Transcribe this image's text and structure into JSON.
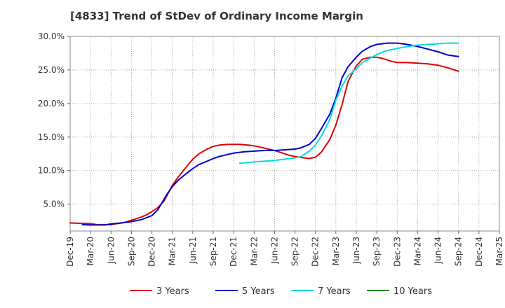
{
  "chart_data": {
    "type": "line",
    "title": "[4833]  Trend of StDev of Ordinary Income Margin",
    "x_labels": [
      "Dec-19",
      "Mar-20",
      "Jun-20",
      "Sep-20",
      "Dec-20",
      "Mar-21",
      "Jun-21",
      "Sep-21",
      "Dec-21",
      "Mar-22",
      "Jun-22",
      "Sep-22",
      "Dec-22",
      "Mar-23",
      "Jun-23",
      "Sep-23",
      "Dec-23",
      "Mar-24",
      "Jun-24",
      "Sep-24",
      "Dec-24",
      "Mar-25"
    ],
    "y_ticks": [
      "5.0%",
      "10.0%",
      "15.0%",
      "20.0%",
      "25.0%",
      "30.0%"
    ],
    "y_tick_values": [
      5,
      10,
      15,
      20,
      25,
      30
    ],
    "ylim": [
      1,
      30
    ],
    "grid": true,
    "legend_position": "bottom",
    "series": [
      {
        "name": "3 Years",
        "color": "#dd0000",
        "points": [
          [
            0,
            2.2
          ],
          [
            1,
            2.1
          ],
          [
            1.3,
            1.95
          ],
          [
            2,
            1.95
          ],
          [
            2.7,
            2.3
          ],
          [
            3,
            2.6
          ],
          [
            3.5,
            3.1
          ],
          [
            3.8,
            3.5
          ],
          [
            4,
            3.9
          ],
          [
            4.3,
            4.5
          ],
          [
            4.6,
            5.5
          ],
          [
            5,
            7.8
          ],
          [
            5.3,
            9.1
          ],
          [
            5.7,
            10.6
          ],
          [
            6,
            11.7
          ],
          [
            6.3,
            12.5
          ],
          [
            6.7,
            13.2
          ],
          [
            7,
            13.6
          ],
          [
            7.3,
            13.8
          ],
          [
            7.7,
            13.9
          ],
          [
            8,
            13.9
          ],
          [
            8.3,
            13.9
          ],
          [
            8.7,
            13.8
          ],
          [
            9,
            13.7
          ],
          [
            9.3,
            13.5
          ],
          [
            9.7,
            13.2
          ],
          [
            10,
            13.0
          ],
          [
            10.3,
            12.7
          ],
          [
            10.7,
            12.3
          ],
          [
            11,
            12.1
          ],
          [
            11.3,
            11.95
          ],
          [
            11.7,
            11.8
          ],
          [
            12,
            12.0
          ],
          [
            12.3,
            12.8
          ],
          [
            12.7,
            14.6
          ],
          [
            13,
            16.8
          ],
          [
            13.3,
            19.8
          ],
          [
            13.6,
            23.3
          ],
          [
            14,
            25.6
          ],
          [
            14.3,
            26.6
          ],
          [
            14.7,
            26.9
          ],
          [
            15,
            26.9
          ],
          [
            15.3,
            26.7
          ],
          [
            15.7,
            26.3
          ],
          [
            16,
            26.1
          ],
          [
            16.5,
            26.1
          ],
          [
            17,
            26.0
          ],
          [
            17.5,
            25.9
          ],
          [
            18,
            25.7
          ],
          [
            18.5,
            25.3
          ],
          [
            19,
            24.8
          ]
        ]
      },
      {
        "name": "5 Years",
        "color": "#0000cc",
        "points": [
          [
            0.6,
            1.95
          ],
          [
            1,
            1.9
          ],
          [
            1.7,
            1.9
          ],
          [
            2,
            2.05
          ],
          [
            2.5,
            2.2
          ],
          [
            3,
            2.4
          ],
          [
            3.5,
            2.7
          ],
          [
            4,
            3.3
          ],
          [
            4.3,
            4.2
          ],
          [
            4.7,
            6.3
          ],
          [
            5,
            7.6
          ],
          [
            5.3,
            8.6
          ],
          [
            5.7,
            9.6
          ],
          [
            6,
            10.3
          ],
          [
            6.3,
            10.9
          ],
          [
            6.7,
            11.4
          ],
          [
            7,
            11.8
          ],
          [
            7.3,
            12.1
          ],
          [
            7.7,
            12.4
          ],
          [
            8,
            12.6
          ],
          [
            8.5,
            12.8
          ],
          [
            9,
            12.9
          ],
          [
            9.5,
            13.0
          ],
          [
            10,
            13.0
          ],
          [
            10.5,
            13.1
          ],
          [
            11,
            13.2
          ],
          [
            11.3,
            13.4
          ],
          [
            11.7,
            13.9
          ],
          [
            12,
            14.8
          ],
          [
            12.3,
            16.3
          ],
          [
            12.7,
            18.4
          ],
          [
            13,
            20.8
          ],
          [
            13.3,
            23.8
          ],
          [
            13.6,
            25.5
          ],
          [
            14,
            26.9
          ],
          [
            14.3,
            27.8
          ],
          [
            14.7,
            28.5
          ],
          [
            15,
            28.8
          ],
          [
            15.5,
            29.0
          ],
          [
            16,
            29.0
          ],
          [
            16.5,
            28.8
          ],
          [
            17,
            28.5
          ],
          [
            17.5,
            28.1
          ],
          [
            18,
            27.7
          ],
          [
            18.5,
            27.2
          ],
          [
            19,
            27.0
          ]
        ]
      },
      {
        "name": "7 Years",
        "color": "#00dddd",
        "points": [
          [
            8.3,
            11.1
          ],
          [
            8.7,
            11.2
          ],
          [
            9,
            11.3
          ],
          [
            9.5,
            11.4
          ],
          [
            10,
            11.5
          ],
          [
            10.5,
            11.7
          ],
          [
            11,
            11.9
          ],
          [
            11.3,
            12.1
          ],
          [
            11.7,
            12.9
          ],
          [
            12,
            13.8
          ],
          [
            12.3,
            15.2
          ],
          [
            12.7,
            17.6
          ],
          [
            13,
            20.5
          ],
          [
            13.3,
            22.6
          ],
          [
            13.6,
            24.1
          ],
          [
            14,
            25.2
          ],
          [
            14.3,
            26.1
          ],
          [
            14.7,
            26.8
          ],
          [
            15,
            27.3
          ],
          [
            15.5,
            27.9
          ],
          [
            16,
            28.2
          ],
          [
            16.5,
            28.5
          ],
          [
            17,
            28.7
          ],
          [
            17.5,
            28.8
          ],
          [
            18,
            28.9
          ],
          [
            18.5,
            29.0
          ],
          [
            19,
            29.0
          ]
        ]
      },
      {
        "name": "10 Years",
        "color": "#228822",
        "points": []
      }
    ]
  }
}
